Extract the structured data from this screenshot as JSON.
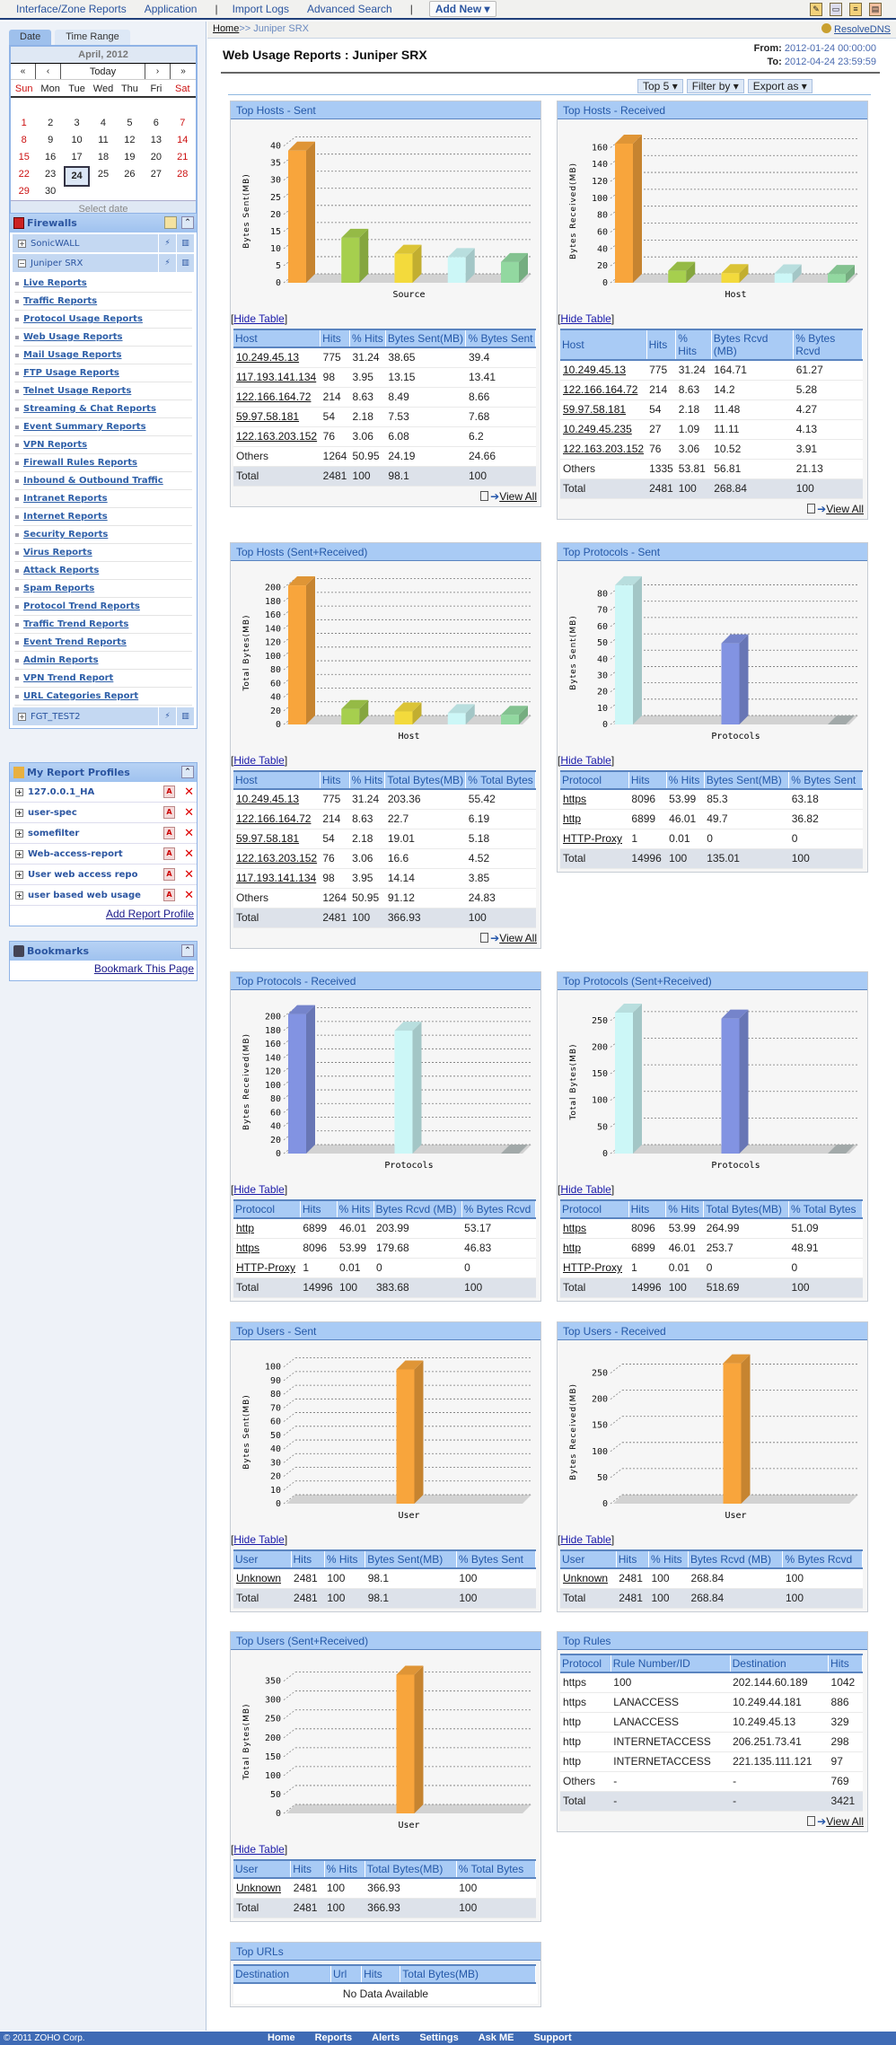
{
  "topnav": {
    "items": [
      "Interface/Zone Reports",
      "Application",
      "Import Logs",
      "Advanced Search"
    ],
    "add_new": "Add New ▾"
  },
  "breadcrumb": {
    "home": "Home",
    "sep": ">> ",
    "current": "Juniper SRX",
    "resolve": "ResolveDNS"
  },
  "header": {
    "title": "Web Usage Reports : Juniper SRX",
    "from_label": "From:",
    "from": "2012-01-24 00:00:00",
    "to_label": "To:",
    "to": "2012-04-24 23:59:59"
  },
  "toolbar": {
    "top": "Top 5 ▾",
    "filter": "Filter by ▾",
    "export": "Export as ▾"
  },
  "calendar": {
    "tabs": [
      "Date",
      "Time Range"
    ],
    "month": "April, 2012",
    "nav": [
      "«",
      "‹",
      "Today",
      "›",
      "»"
    ],
    "days": [
      "Sun",
      "Mon",
      "Tue",
      "Wed",
      "Thu",
      "Fri",
      "Sat"
    ],
    "weeks": [
      [
        "",
        "",
        "",
        "",
        "",
        "",
        ""
      ],
      [
        "1",
        "2",
        "3",
        "4",
        "5",
        "6",
        "7"
      ],
      [
        "8",
        "9",
        "10",
        "11",
        "12",
        "13",
        "14"
      ],
      [
        "15",
        "16",
        "17",
        "18",
        "19",
        "20",
        "21"
      ],
      [
        "22",
        "23",
        "24",
        "25",
        "26",
        "27",
        "28"
      ],
      [
        "29",
        "30",
        "",
        "",
        "",
        "",
        ""
      ]
    ],
    "selected": "24",
    "footer": "Select date"
  },
  "firewalls": {
    "title": "Firewalls",
    "devices": [
      "SonicWALL",
      "Juniper SRX"
    ],
    "last_device": "FGT_TEST2",
    "reports": [
      "Live Reports",
      "Traffic Reports",
      "Protocol Usage Reports",
      "Web Usage Reports",
      "Mail Usage Reports",
      "FTP Usage Reports",
      "Telnet Usage Reports",
      "Streaming & Chat Reports",
      "Event Summary Reports",
      "VPN Reports",
      "Firewall Rules Reports",
      "Inbound & Outbound Traffic",
      "Intranet Reports",
      "Internet Reports",
      "Security Reports",
      "Virus Reports",
      "Attack Reports",
      "Spam Reports",
      "Protocol Trend Reports",
      "Traffic Trend Reports",
      "Event Trend Reports",
      "Admin Reports",
      "VPN Trend Report",
      "URL Categories Report"
    ]
  },
  "profiles": {
    "title": "My Report Profiles",
    "items": [
      "127.0.0.1_HA",
      "user-spec",
      "somefilter",
      "Web-access-report",
      "User web access repo",
      "user based web usage"
    ],
    "add": "Add Report Profile"
  },
  "bookmarks": {
    "title": "Bookmarks",
    "add": "Bookmark This Page"
  },
  "common": {
    "hide_table": "Hide Table",
    "view_all": "View All"
  },
  "colors": {
    "orange": "#f8a53c",
    "green": "#a6cf4e",
    "yellow": "#f3da3c",
    "cyan": "#ccf7f7",
    "mint": "#92d8a0",
    "blue": "#8293e2",
    "gray": "#b4bcbc"
  },
  "chart_data": [
    {
      "type": "bar",
      "title": "Top Hosts - Sent",
      "ylabel": "Bytes Sent(MB)",
      "xlabel": "Source",
      "categories": [
        "10.249.45.13",
        "117.193.141.134",
        "122.166.164.72",
        "59.97.58.181",
        "122.163.203.152"
      ],
      "values": [
        38.65,
        13.15,
        8.49,
        7.53,
        6.08
      ],
      "colors": [
        "orange",
        "green",
        "yellow",
        "cyan",
        "mint"
      ],
      "ylim": [
        0,
        42
      ],
      "yticks": [
        0,
        5,
        10,
        15,
        20,
        25,
        30,
        35,
        40
      ]
    },
    {
      "type": "bar",
      "title": "Top Hosts - Received",
      "ylabel": "Bytes Received(MB)",
      "xlabel": "Host",
      "categories": [
        "10.249.45.13",
        "122.166.164.72",
        "59.97.58.181",
        "10.249.45.235",
        "122.163.203.152"
      ],
      "values": [
        164.71,
        14.2,
        11.48,
        11.11,
        10.52
      ],
      "colors": [
        "orange",
        "green",
        "yellow",
        "cyan",
        "mint"
      ],
      "ylim": [
        0,
        170
      ],
      "yticks": [
        0,
        20,
        40,
        60,
        80,
        100,
        120,
        140,
        160
      ]
    },
    {
      "type": "bar",
      "title": "Top Hosts (Sent+Received)",
      "ylabel": "Total Bytes(MB)",
      "xlabel": "Host",
      "categories": [
        "10.249.45.13",
        "122.166.164.72",
        "59.97.58.181",
        "122.163.203.152",
        "117.193.141.134"
      ],
      "values": [
        203.36,
        22.7,
        19.01,
        16.6,
        14.14
      ],
      "colors": [
        "orange",
        "green",
        "yellow",
        "cyan",
        "mint"
      ],
      "ylim": [
        0,
        210
      ],
      "yticks": [
        0,
        20,
        40,
        60,
        80,
        100,
        120,
        140,
        160,
        180,
        200
      ]
    },
    {
      "type": "bar",
      "title": "Top Protocols - Sent",
      "ylabel": "Bytes Sent(MB)",
      "xlabel": "Protocols",
      "categories": [
        "https",
        "http",
        "HTTP-Proxy"
      ],
      "values": [
        85.3,
        49.7,
        0
      ],
      "colors": [
        "cyan",
        "blue",
        "gray"
      ],
      "ylim": [
        0,
        88
      ],
      "yticks": [
        0,
        10,
        20,
        30,
        40,
        50,
        60,
        70,
        80
      ]
    },
    {
      "type": "bar",
      "title": "Top Protocols - Received",
      "ylabel": "Bytes Received(MB)",
      "xlabel": "Protocols",
      "categories": [
        "http",
        "https",
        "HTTP-Proxy"
      ],
      "values": [
        203.99,
        179.68,
        0
      ],
      "colors": [
        "blue",
        "cyan",
        "gray"
      ],
      "ylim": [
        0,
        210
      ],
      "yticks": [
        0,
        20,
        40,
        60,
        80,
        100,
        120,
        140,
        160,
        180,
        200
      ]
    },
    {
      "type": "bar",
      "title": "Top Protocols (Sent+Received)",
      "ylabel": "Total Bytes(MB)",
      "xlabel": "Protocols",
      "categories": [
        "https",
        "http",
        "HTTP-Proxy"
      ],
      "values": [
        264.99,
        253.7,
        0
      ],
      "colors": [
        "cyan",
        "blue",
        "gray"
      ],
      "ylim": [
        0,
        270
      ],
      "yticks": [
        0,
        50,
        100,
        150,
        200,
        250
      ]
    },
    {
      "type": "bar",
      "title": "Top Users - Sent",
      "ylabel": "Bytes Sent(MB)",
      "xlabel": "User",
      "categories": [
        "Unknown"
      ],
      "values": [
        98.1
      ],
      "colors": [
        "orange"
      ],
      "ylim": [
        0,
        105
      ],
      "yticks": [
        0,
        10,
        20,
        30,
        40,
        50,
        60,
        70,
        80,
        90,
        100
      ]
    },
    {
      "type": "bar",
      "title": "Top Users - Received",
      "ylabel": "Bytes Received(MB)",
      "xlabel": "User",
      "categories": [
        "Unknown"
      ],
      "values": [
        268.84
      ],
      "colors": [
        "orange"
      ],
      "ylim": [
        0,
        275
      ],
      "yticks": [
        0,
        50,
        100,
        150,
        200,
        250
      ]
    },
    {
      "type": "bar",
      "title": "Top Users (Sent+Received)",
      "ylabel": "Total Bytes(MB)",
      "xlabel": "User",
      "categories": [
        "Unknown"
      ],
      "values": [
        366.93
      ],
      "colors": [
        "orange"
      ],
      "ylim": [
        0,
        380
      ],
      "yticks": [
        0,
        50,
        100,
        150,
        200,
        250,
        300,
        350
      ]
    }
  ],
  "panels": [
    {
      "title": "Top Hosts - Sent",
      "chart": 0,
      "headers": [
        "Host",
        "Hits",
        "% Hits",
        "Bytes Sent(MB)",
        "% Bytes Sent"
      ],
      "rows": [
        [
          "10.249.45.13",
          "775",
          "31.24",
          "38.65",
          "39.4"
        ],
        [
          "117.193.141.134",
          "98",
          "3.95",
          "13.15",
          "13.41"
        ],
        [
          "122.166.164.72",
          "214",
          "8.63",
          "8.49",
          "8.66"
        ],
        [
          "59.97.58.181",
          "54",
          "2.18",
          "7.53",
          "7.68"
        ],
        [
          "122.163.203.152",
          "76",
          "3.06",
          "6.08",
          "6.2"
        ],
        [
          "Others",
          "1264",
          "50.95",
          "24.19",
          "24.66"
        ]
      ],
      "total": [
        "Total",
        "2481",
        "100",
        "98.1",
        "100"
      ],
      "links": 5,
      "view_all": true
    },
    {
      "title": "Top Hosts - Received",
      "chart": 1,
      "headers": [
        "Host",
        "Hits",
        "% Hits",
        "Bytes Rcvd (MB)",
        "% Bytes Rcvd"
      ],
      "rows": [
        [
          "10.249.45.13",
          "775",
          "31.24",
          "164.71",
          "61.27"
        ],
        [
          "122.166.164.72",
          "214",
          "8.63",
          "14.2",
          "5.28"
        ],
        [
          "59.97.58.181",
          "54",
          "2.18",
          "11.48",
          "4.27"
        ],
        [
          "10.249.45.235",
          "27",
          "1.09",
          "11.11",
          "4.13"
        ],
        [
          "122.163.203.152",
          "76",
          "3.06",
          "10.52",
          "3.91"
        ],
        [
          "Others",
          "1335",
          "53.81",
          "56.81",
          "21.13"
        ]
      ],
      "total": [
        "Total",
        "2481",
        "100",
        "268.84",
        "100"
      ],
      "links": 5,
      "view_all": true
    },
    {
      "title": "Top Hosts (Sent+Received)",
      "chart": 2,
      "headers": [
        "Host",
        "Hits",
        "% Hits",
        "Total Bytes(MB)",
        "% Total Bytes"
      ],
      "rows": [
        [
          "10.249.45.13",
          "775",
          "31.24",
          "203.36",
          "55.42"
        ],
        [
          "122.166.164.72",
          "214",
          "8.63",
          "22.7",
          "6.19"
        ],
        [
          "59.97.58.181",
          "54",
          "2.18",
          "19.01",
          "5.18"
        ],
        [
          "122.163.203.152",
          "76",
          "3.06",
          "16.6",
          "4.52"
        ],
        [
          "117.193.141.134",
          "98",
          "3.95",
          "14.14",
          "3.85"
        ],
        [
          "Others",
          "1264",
          "50.95",
          "91.12",
          "24.83"
        ]
      ],
      "total": [
        "Total",
        "2481",
        "100",
        "366.93",
        "100"
      ],
      "links": 5,
      "view_all": true
    },
    {
      "title": "Top Protocols - Sent",
      "chart": 3,
      "headers": [
        "Protocol",
        "Hits",
        "% Hits",
        "Bytes Sent(MB)",
        "% Bytes Sent"
      ],
      "rows": [
        [
          "https",
          "8096",
          "53.99",
          "85.3",
          "63.18"
        ],
        [
          "http",
          "6899",
          "46.01",
          "49.7",
          "36.82"
        ],
        [
          "HTTP-Proxy",
          "1",
          "0.01",
          "0",
          "0"
        ]
      ],
      "total": [
        "Total",
        "14996",
        "100",
        "135.01",
        "100"
      ],
      "links": 3,
      "view_all": false
    },
    {
      "title": "Top Protocols - Received",
      "chart": 4,
      "headers": [
        "Protocol",
        "Hits",
        "% Hits",
        "Bytes Rcvd (MB)",
        "% Bytes Rcvd"
      ],
      "rows": [
        [
          "http",
          "6899",
          "46.01",
          "203.99",
          "53.17"
        ],
        [
          "https",
          "8096",
          "53.99",
          "179.68",
          "46.83"
        ],
        [
          "HTTP-Proxy",
          "1",
          "0.01",
          "0",
          "0"
        ]
      ],
      "total": [
        "Total",
        "14996",
        "100",
        "383.68",
        "100"
      ],
      "links": 3,
      "view_all": false
    },
    {
      "title": "Top Protocols (Sent+Received)",
      "chart": 5,
      "headers": [
        "Protocol",
        "Hits",
        "% Hits",
        "Total Bytes(MB)",
        "% Total Bytes"
      ],
      "rows": [
        [
          "https",
          "8096",
          "53.99",
          "264.99",
          "51.09"
        ],
        [
          "http",
          "6899",
          "46.01",
          "253.7",
          "48.91"
        ],
        [
          "HTTP-Proxy",
          "1",
          "0.01",
          "0",
          "0"
        ]
      ],
      "total": [
        "Total",
        "14996",
        "100",
        "518.69",
        "100"
      ],
      "links": 3,
      "view_all": false
    },
    {
      "title": "Top Users - Sent",
      "chart": 6,
      "headers": [
        "User",
        "Hits",
        "% Hits",
        "Bytes Sent(MB)",
        "% Bytes Sent"
      ],
      "rows": [
        [
          "Unknown",
          "2481",
          "100",
          "98.1",
          "100"
        ]
      ],
      "total": [
        "Total",
        "2481",
        "100",
        "98.1",
        "100"
      ],
      "links": 1,
      "view_all": false
    },
    {
      "title": "Top Users - Received",
      "chart": 7,
      "headers": [
        "User",
        "Hits",
        "% Hits",
        "Bytes Rcvd (MB)",
        "% Bytes Rcvd"
      ],
      "rows": [
        [
          "Unknown",
          "2481",
          "100",
          "268.84",
          "100"
        ]
      ],
      "total": [
        "Total",
        "2481",
        "100",
        "268.84",
        "100"
      ],
      "links": 1,
      "view_all": false
    },
    {
      "title": "Top Users (Sent+Received)",
      "chart": 8,
      "headers": [
        "User",
        "Hits",
        "% Hits",
        "Total Bytes(MB)",
        "% Total Bytes"
      ],
      "rows": [
        [
          "Unknown",
          "2481",
          "100",
          "366.93",
          "100"
        ]
      ],
      "total": [
        "Total",
        "2481",
        "100",
        "366.93",
        "100"
      ],
      "links": 1,
      "view_all": false
    },
    {
      "title": "Top Rules",
      "chart": null,
      "headers": [
        "Protocol",
        "Rule Number/ID",
        "Destination",
        "Hits"
      ],
      "rows": [
        [
          "https",
          "100",
          "202.144.60.189",
          "1042"
        ],
        [
          "https",
          "LANACCESS",
          "10.249.44.181",
          "886"
        ],
        [
          "http",
          "LANACCESS",
          "10.249.45.13",
          "329"
        ],
        [
          "http",
          "INTERNETACCESS",
          "206.251.73.41",
          "298"
        ],
        [
          "http",
          "INTERNETACCESS",
          "221.135.111.121",
          "97"
        ],
        [
          "Others",
          "-",
          "-",
          "769"
        ]
      ],
      "total": [
        "Total",
        "-",
        "-",
        "3421"
      ],
      "links": 0,
      "view_all": true
    },
    {
      "title": "Top URLs",
      "chart": null,
      "headers": [
        "Destination",
        "Url",
        "Hits",
        "Total Bytes(MB)"
      ],
      "rows": [],
      "total": null,
      "links": 0,
      "view_all": false,
      "empty": "No Data Available"
    }
  ],
  "footer": {
    "copyright": "© 2011 ZOHO Corp.",
    "links": [
      "Home",
      "Reports",
      "Alerts",
      "Settings",
      "Ask ME",
      "Support"
    ]
  }
}
